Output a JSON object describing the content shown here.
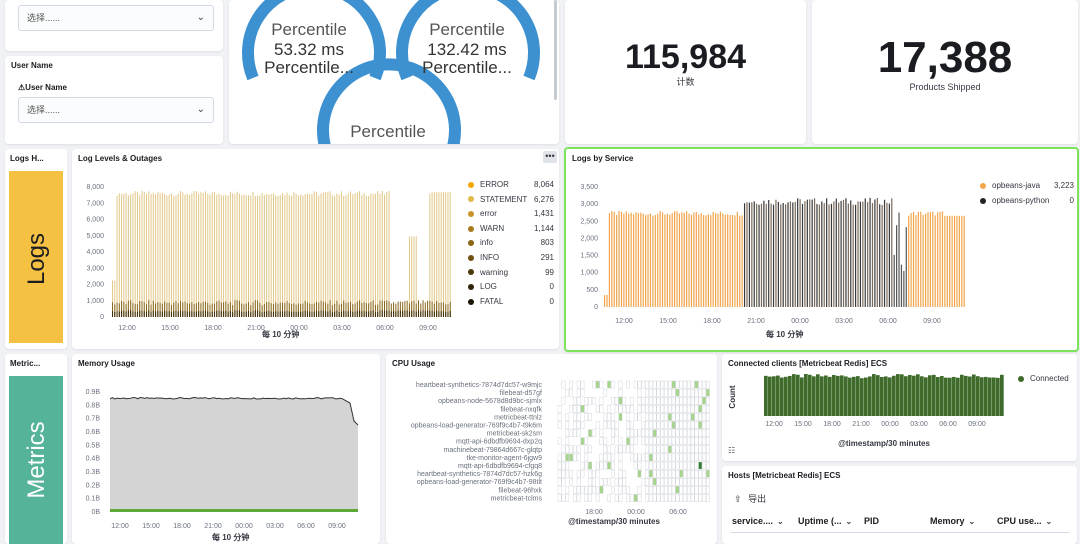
{
  "controls": {
    "top_select_value": "选择......",
    "user_name_panel_title": "User Name",
    "user_name_label": "User Name",
    "user_name_select_value": "选择......"
  },
  "gauges": {
    "g1": {
      "title": "Percentile",
      "value": "53.32 ms",
      "sub": "Percentile..."
    },
    "g2": {
      "title": "Percentile",
      "value": "132.42 ms",
      "sub": "Percentile..."
    },
    "g3": {
      "title": "Percentile"
    }
  },
  "metrics": {
    "count": {
      "value": "115,984",
      "label": "计数"
    },
    "shipped": {
      "value": "17,388",
      "label": "Products Shipped"
    }
  },
  "logs_header": {
    "title": "Logs H...",
    "big": "Logs",
    "color": "#f5c142"
  },
  "metrics_header": {
    "title": "Metric...",
    "big": "Metrics",
    "color": "#54b399"
  },
  "log_levels": {
    "title": "Log Levels & Outages",
    "menu_icon": "ellipsis-icon",
    "xlabel": "每 10 分钟",
    "yticks": [
      "8,000",
      "7,000",
      "6,000",
      "5,000",
      "4,000",
      "3,000",
      "2,000",
      "1,000",
      "0"
    ],
    "xticks": [
      "12:00",
      "15:00",
      "18:00",
      "21:00",
      "00:00",
      "03:00",
      "06:00",
      "09:00"
    ],
    "legend": [
      {
        "name": "ERROR",
        "value": "8,064",
        "color": "#f5a700"
      },
      {
        "name": "STATEMENT",
        "value": "6,276",
        "color": "#e2b84b"
      },
      {
        "name": "error",
        "value": "1,431",
        "color": "#c9922b"
      },
      {
        "name": "WARN",
        "value": "1,144",
        "color": "#a87a1e"
      },
      {
        "name": "info",
        "value": "803",
        "color": "#8a6512"
      },
      {
        "name": "INFO",
        "value": "291",
        "color": "#6e510e"
      },
      {
        "name": "warning",
        "value": "99",
        "color": "#4d3a0a"
      },
      {
        "name": "LOG",
        "value": "0",
        "color": "#2f2407"
      },
      {
        "name": "FATAL",
        "value": "0",
        "color": "#1a1403"
      }
    ]
  },
  "logs_by_service": {
    "title": "Logs by Service",
    "xlabel": "每 10 分钟",
    "yticks": [
      "3,500",
      "3,000",
      "2,500",
      "2,000",
      "1,500",
      "1,000",
      "500",
      "0"
    ],
    "xticks": [
      "12:00",
      "15:00",
      "18:00",
      "21:00",
      "00:00",
      "03:00",
      "06:00",
      "09:00"
    ],
    "legend": [
      {
        "name": "opbeans-java",
        "value": "3,223",
        "color": "#f1a54d"
      },
      {
        "name": "opbeans-python",
        "value": "0",
        "color": "#222222"
      }
    ]
  },
  "memory": {
    "title": "Memory Usage",
    "xlabel": "每 10 分钟",
    "yticks": [
      "0.9B",
      "0.8B",
      "0.7B",
      "0.6B",
      "0.5B",
      "0.4B",
      "0.3B",
      "0.2B",
      "0.1B",
      "0B"
    ],
    "xticks": [
      "12:00",
      "15:00",
      "18:00",
      "21:00",
      "00:00",
      "03:00",
      "06:00",
      "09:00"
    ]
  },
  "cpu": {
    "title": "CPU Usage",
    "xlabel": "@timestamp/30 minutes",
    "xticks": [
      "18:00",
      "00:00",
      "06:00"
    ],
    "hosts": [
      "heartbeat-synthetics-7874d7dc57-w9mjc",
      "filebeat-d57gf",
      "opbeans-node-5678d8d9bc-sjmlx",
      "filebeat-nxqfk",
      "metricbeat-ttnlz",
      "opbeans-load-generator-769f9c4b7-t9k6m",
      "metricbeat-sk2sm",
      "mqtt-api-6dbdfb9694-dxp2q",
      "machinebeat-79864d667c-glqtp",
      "tke-monitor-agent-6jgw9",
      "mqtt-api-6dbdfb9694-cfgq8",
      "heartbeat-synthetics-7874d7dc57-hzk6g",
      "opbeans-load-generator-769f9c4b7-98tlt",
      "filebeat-96hxk",
      "metricbeat-tclms"
    ]
  },
  "connected": {
    "title": "Connected clients [Metricbeat Redis] ECS",
    "ylabel": "Count",
    "xlabel": "@timestamp/30 minutes",
    "xticks": [
      "12:00",
      "15:00",
      "18:00",
      "21:00",
      "00:00",
      "03:00",
      "06:00",
      "09:00"
    ],
    "legend": {
      "name": "Connected",
      "color": "#3f6b2b"
    }
  },
  "hosts_table": {
    "title": "Hosts [Metricbeat Redis] ECS",
    "export_label": "导出",
    "columns": [
      "service....",
      "Uptime (...",
      "PID",
      "Memory",
      "CPU use..."
    ]
  }
}
